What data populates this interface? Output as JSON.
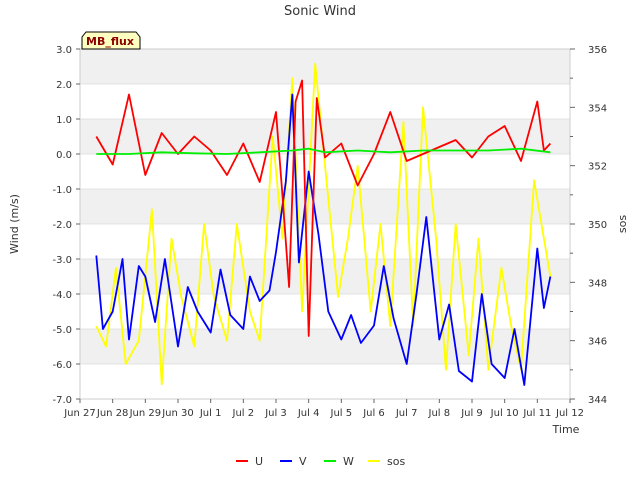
{
  "chart_data": {
    "type": "line",
    "title": "Sonic Wind",
    "site_label": "MB_flux",
    "xlabel": "Time",
    "ylabel_left": "Wind (m/s)",
    "ylabel_right": "sos",
    "x_ticks": [
      "Jun 27",
      "Jun 28",
      "Jun 29",
      "Jun 30",
      "Jul 1",
      "Jul 2",
      "Jul 3",
      "Jul 4",
      "Jul 5",
      "Jul 6",
      "Jul 7",
      "Jul 8",
      "Jul 9",
      "Jul 10",
      "Jul 11",
      "Jul 12"
    ],
    "x_range": [
      0,
      15
    ],
    "ylim_left": [
      -7.0,
      3.0
    ],
    "yticks_left": [
      "-7.0",
      "-6.0",
      "-5.0",
      "-4.0",
      "-3.0",
      "-2.0",
      "-1.0",
      "0.0",
      "1.0",
      "2.0",
      "3.0"
    ],
    "ylim_right": [
      344,
      356
    ],
    "yticks_right": [
      "344",
      "346",
      "348",
      "350",
      "352",
      "354",
      "356"
    ],
    "colors": {
      "U": "#ff0000",
      "V": "#0000ff",
      "W": "#00ee00",
      "sos": "#ffff00"
    },
    "legend": [
      "U",
      "V",
      "W",
      "sos"
    ],
    "series": [
      {
        "name": "U",
        "axis": "left",
        "x": [
          0.5,
          1.0,
          1.5,
          2.0,
          2.5,
          3.0,
          3.5,
          4.0,
          4.5,
          5.0,
          5.5,
          6.0,
          6.2,
          6.4,
          6.6,
          6.8,
          7.0,
          7.25,
          7.5,
          8.0,
          8.5,
          9.0,
          9.5,
          10.0,
          10.5,
          11.0,
          11.5,
          12.0,
          12.5,
          13.0,
          13.5,
          14.0,
          14.2,
          14.4
        ],
        "values": [
          0.5,
          -0.3,
          1.7,
          -0.6,
          0.6,
          0.0,
          0.5,
          0.1,
          -0.6,
          0.3,
          -0.8,
          1.2,
          -1.2,
          -3.8,
          1.5,
          2.1,
          -5.2,
          1.6,
          -0.1,
          0.3,
          -0.9,
          0.0,
          1.2,
          -0.2,
          0.0,
          0.2,
          0.4,
          -0.1,
          0.5,
          0.8,
          -0.2,
          1.5,
          0.1,
          0.3
        ]
      },
      {
        "name": "V",
        "axis": "left",
        "x": [
          0.5,
          0.7,
          1.0,
          1.3,
          1.5,
          1.8,
          2.0,
          2.3,
          2.6,
          3.0,
          3.3,
          3.6,
          4.0,
          4.3,
          4.6,
          5.0,
          5.2,
          5.5,
          5.8,
          6.0,
          6.3,
          6.5,
          6.7,
          7.0,
          7.3,
          7.6,
          8.0,
          8.3,
          8.6,
          9.0,
          9.3,
          9.6,
          10.0,
          10.3,
          10.6,
          11.0,
          11.3,
          11.6,
          12.0,
          12.3,
          12.6,
          13.0,
          13.3,
          13.6,
          14.0,
          14.2,
          14.4
        ],
        "values": [
          -2.9,
          -5.0,
          -4.5,
          -3.0,
          -5.3,
          -3.2,
          -3.5,
          -4.8,
          -3.0,
          -5.5,
          -3.8,
          -4.5,
          -5.1,
          -3.3,
          -4.6,
          -5.0,
          -3.5,
          -4.2,
          -3.9,
          -2.8,
          -0.8,
          1.7,
          -3.1,
          -0.5,
          -2.3,
          -4.5,
          -5.3,
          -4.6,
          -5.4,
          -4.9,
          -3.2,
          -4.7,
          -6.0,
          -4.0,
          -1.8,
          -5.3,
          -4.3,
          -6.2,
          -6.5,
          -4.0,
          -6.0,
          -6.4,
          -5.0,
          -6.6,
          -2.7,
          -4.4,
          -3.5
        ]
      },
      {
        "name": "W",
        "axis": "left",
        "x": [
          0.5,
          1.5,
          2.5,
          3.5,
          4.5,
          5.5,
          6.5,
          7.0,
          7.5,
          8.5,
          9.5,
          10.5,
          11.5,
          12.5,
          13.5,
          14.4
        ],
        "values": [
          0.0,
          0.0,
          0.05,
          0.02,
          0.0,
          0.05,
          0.1,
          0.15,
          0.05,
          0.1,
          0.05,
          0.1,
          0.1,
          0.1,
          0.15,
          0.05
        ]
      },
      {
        "name": "sos",
        "axis": "right",
        "x": [
          0.5,
          0.8,
          1.1,
          1.4,
          1.8,
          2.2,
          2.5,
          2.8,
          3.1,
          3.5,
          3.8,
          4.1,
          4.5,
          4.8,
          5.2,
          5.5,
          5.9,
          6.2,
          6.5,
          6.8,
          7.2,
          7.5,
          7.9,
          8.2,
          8.5,
          8.9,
          9.2,
          9.5,
          9.9,
          10.2,
          10.5,
          10.9,
          11.2,
          11.5,
          11.9,
          12.2,
          12.5,
          12.9,
          13.2,
          13.5,
          13.9,
          14.2,
          14.4
        ],
        "values": [
          346.5,
          345.8,
          348.5,
          345.2,
          346.0,
          350.5,
          344.5,
          349.5,
          347.5,
          345.8,
          350.0,
          347.5,
          346.0,
          350.0,
          347.0,
          346.0,
          353.0,
          349.5,
          355.0,
          347.0,
          355.5,
          352.0,
          347.5,
          349.5,
          352.0,
          347.0,
          350.0,
          346.5,
          353.5,
          346.5,
          354.0,
          349.5,
          345.0,
          350.0,
          345.5,
          349.5,
          345.0,
          348.5,
          346.5,
          345.0,
          351.5,
          349.5,
          348.2
        ]
      }
    ]
  }
}
